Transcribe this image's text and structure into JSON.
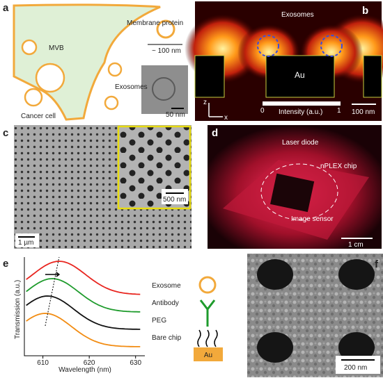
{
  "panels": {
    "a": {
      "label": "a",
      "membrane_protein": "Membrane protein",
      "size": "~ 100 nm",
      "mvb": "MVB",
      "exosomes": "Exosomes",
      "cell": "Cancer cell",
      "scale": "50 nm"
    },
    "b": {
      "label": "b",
      "exosomes": "Exosomes",
      "au": "Au",
      "z": "z",
      "x": "x",
      "cbar_min": 0,
      "cbar_max": 1,
      "cbar_label": "Intensity (a.u.)",
      "scale": "100 nm"
    },
    "c": {
      "label": "c",
      "scale_inset": "500 nm",
      "scale": "1 µm"
    },
    "d": {
      "label": "d",
      "laser": "Laser diode",
      "chip": "nPLEX chip",
      "sensor": "Image sensor",
      "scale": "1 cm"
    },
    "e": {
      "label": "e",
      "au": "Au"
    },
    "f": {
      "label": "f",
      "scale": "200 nm"
    }
  },
  "chart_data": {
    "type": "line",
    "ylabel": "Transmission (a.u.)",
    "xlabel": "Wavelength (nm)",
    "xlim": [
      606,
      632
    ],
    "xticks": [
      610,
      620,
      630
    ],
    "series": [
      {
        "name": "Exosome",
        "color": "#e8251f",
        "peak": 613.5
      },
      {
        "name": "Antibody",
        "color": "#1e9b2c",
        "peak": 612
      },
      {
        "name": "PEG",
        "color": "#111111",
        "peak": 611
      },
      {
        "name": "Bare chip",
        "color": "#f28c12",
        "peak": 610.5
      }
    ]
  }
}
